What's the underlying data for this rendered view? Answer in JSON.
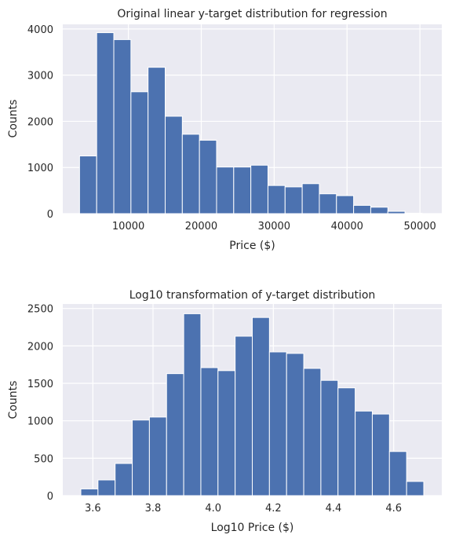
{
  "chart_data": [
    {
      "type": "bar",
      "title": "Original linear y-target distribution for regression",
      "xlabel": "Price ($)",
      "ylabel": "Counts",
      "xlim": [
        1000,
        53000
      ],
      "ylim": [
        0,
        4100
      ],
      "xticks": [
        10000,
        20000,
        30000,
        40000,
        50000
      ],
      "yticks": [
        0,
        1000,
        2000,
        3000,
        4000
      ],
      "grid": true,
      "bar_color": "#4c72b0",
      "background": "#eaeaf2",
      "bin_edges": [
        3300,
        5650,
        8000,
        10350,
        12700,
        15050,
        17400,
        19750,
        22100,
        24450,
        26800,
        29150,
        31500,
        33850,
        36200,
        38550,
        40900,
        43250,
        45600,
        47950,
        50300
      ],
      "values": [
        1250,
        3920,
        3770,
        2640,
        3170,
        2110,
        1720,
        1590,
        1010,
        1010,
        1050,
        610,
        580,
        650,
        430,
        390,
        180,
        140,
        50,
        10
      ]
    },
    {
      "type": "bar",
      "title": "Log10 transformation of y-target distribution",
      "xlabel": "Log10 Price ($)",
      "ylabel": "Counts",
      "xlim": [
        3.5,
        4.76
      ],
      "ylim": [
        0,
        2560
      ],
      "xticks": [
        "3.6",
        "3.8",
        "4.0",
        "4.2",
        "4.4",
        "4.6"
      ],
      "yticks": [
        0,
        500,
        1000,
        1500,
        2000,
        2500
      ],
      "grid": true,
      "bar_color": "#4c72b0",
      "background": "#eaeaf2",
      "bin_edges": [
        3.56,
        3.617,
        3.674,
        3.731,
        3.788,
        3.845,
        3.902,
        3.959,
        4.016,
        4.073,
        4.13,
        4.187,
        4.244,
        4.301,
        4.358,
        4.415,
        4.472,
        4.529,
        4.586,
        4.643,
        4.7
      ],
      "values": [
        90,
        210,
        430,
        1010,
        1050,
        1630,
        2430,
        1710,
        1670,
        2130,
        2380,
        1920,
        1900,
        1700,
        1540,
        1440,
        1130,
        1090,
        590,
        190
      ]
    }
  ]
}
